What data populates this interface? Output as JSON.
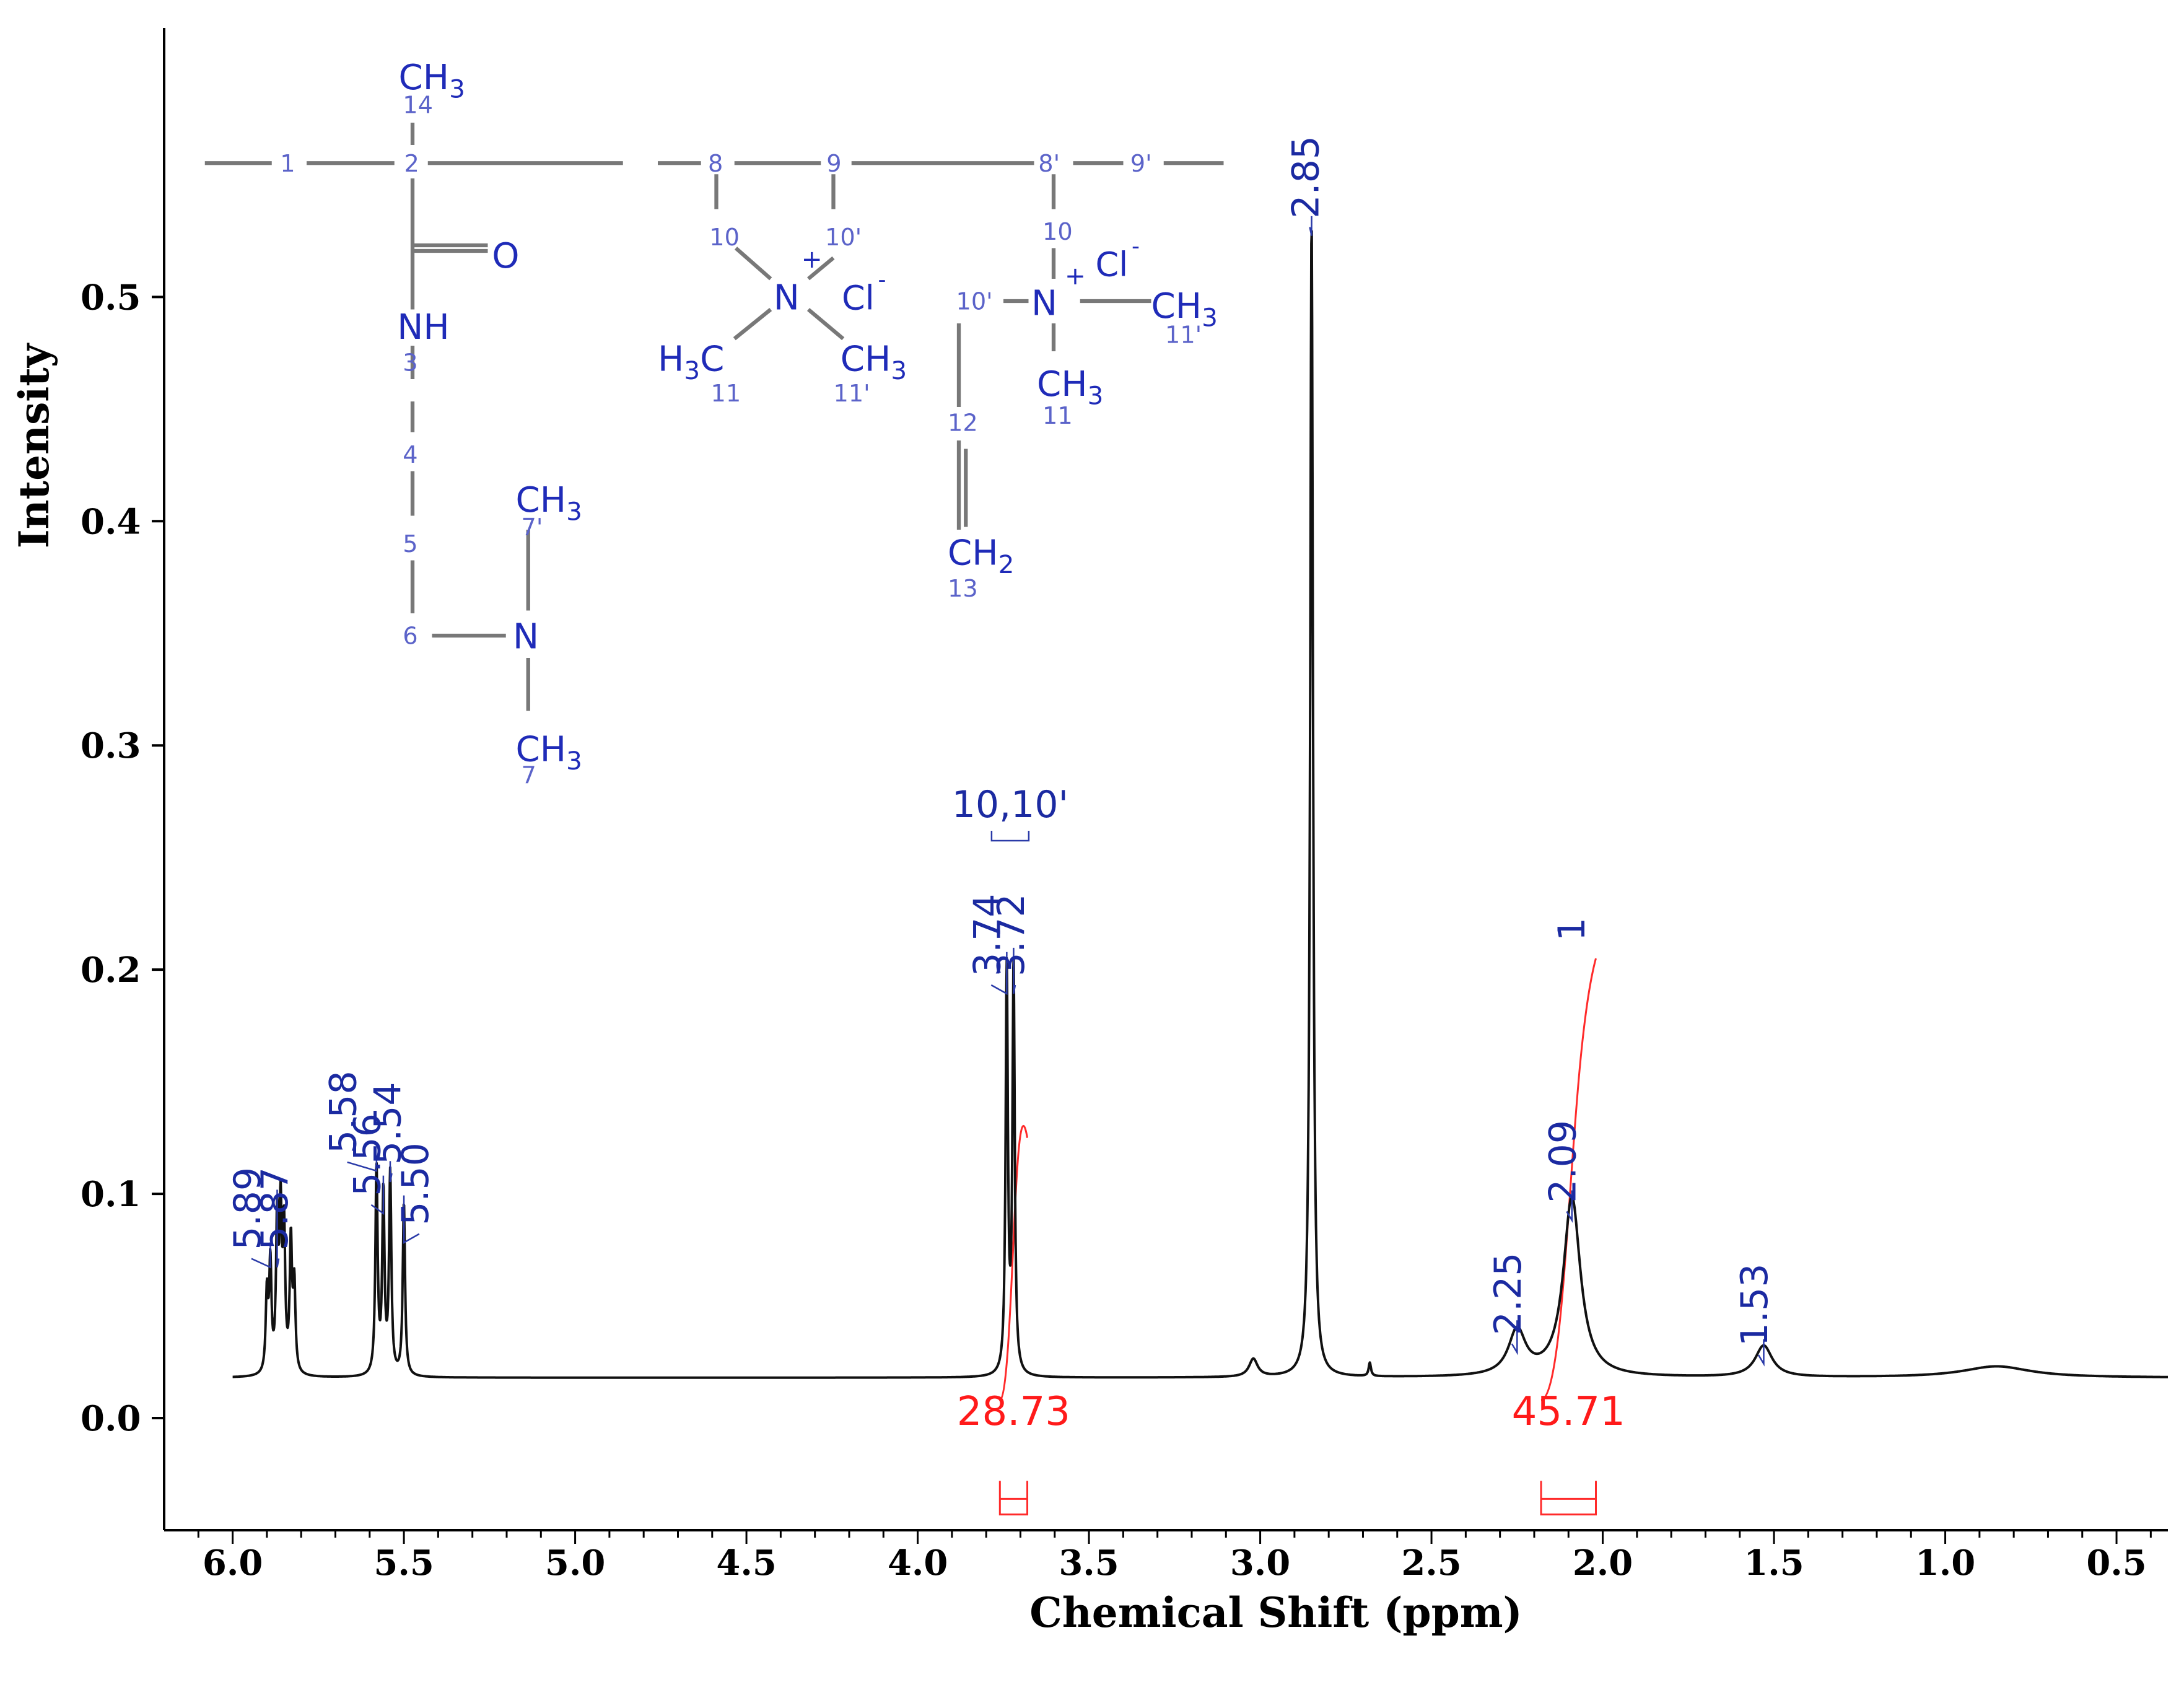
{
  "chart_data": {
    "type": "line",
    "xlabel": "Chemical Shift (ppm)",
    "ylabel": "Intensity",
    "xlim": [
      6.2,
      0.35
    ],
    "ylim": [
      -0.05,
      0.62
    ],
    "x_reversed": true,
    "x_ticks": [
      "6.0",
      "5.5",
      "5.0",
      "4.5",
      "4.0",
      "3.5",
      "3.0",
      "2.5",
      "2.0",
      "1.5",
      "1.0",
      "0.5"
    ],
    "y_ticks": [
      "0.0",
      "0.1",
      "0.2",
      "0.3",
      "0.4",
      "0.5"
    ],
    "baseline": 0.018,
    "series": [
      {
        "peaks": [
          {
            "x": 5.9,
            "height": 0.035,
            "width": 0.004
          },
          {
            "x": 5.89,
            "height": 0.048,
            "width": 0.004
          },
          {
            "x": 5.87,
            "height": 0.066,
            "width": 0.004
          },
          {
            "x": 5.86,
            "height": 0.068,
            "width": 0.004
          },
          {
            "x": 5.85,
            "height": 0.062,
            "width": 0.004
          },
          {
            "x": 5.83,
            "height": 0.058,
            "width": 0.004
          },
          {
            "x": 5.82,
            "height": 0.038,
            "width": 0.004
          },
          {
            "x": 5.58,
            "height": 0.092,
            "width": 0.004
          },
          {
            "x": 5.56,
            "height": 0.08,
            "width": 0.004
          },
          {
            "x": 5.54,
            "height": 0.089,
            "width": 0.004
          },
          {
            "x": 5.5,
            "height": 0.077,
            "width": 0.004
          },
          {
            "x": 3.74,
            "height": 0.18,
            "width": 0.004
          },
          {
            "x": 3.72,
            "height": 0.182,
            "width": 0.004
          },
          {
            "x": 3.02,
            "height": 0.008,
            "width": 0.015
          },
          {
            "x": 2.85,
            "height": 0.515,
            "width": 0.005
          },
          {
            "x": 2.68,
            "height": 0.006,
            "width": 0.004
          },
          {
            "x": 2.25,
            "height": 0.02,
            "width": 0.03
          },
          {
            "x": 2.09,
            "height": 0.08,
            "width": 0.03
          },
          {
            "x": 1.53,
            "height": 0.014,
            "width": 0.03
          },
          {
            "x": 0.85,
            "height": 0.005,
            "width": 0.12
          }
        ]
      }
    ],
    "peak_labels": [
      {
        "x": 5.89,
        "label": "5.89"
      },
      {
        "x": 5.87,
        "label": "5.87"
      },
      {
        "x": 5.58,
        "label": "5.58"
      },
      {
        "x": 5.56,
        "label": "5.56"
      },
      {
        "x": 5.54,
        "label": "5.54"
      },
      {
        "x": 5.5,
        "label": "5.50"
      },
      {
        "x": 3.74,
        "label": "3.74"
      },
      {
        "x": 3.72,
        "label": "3.72"
      },
      {
        "x": 2.85,
        "label": "2.85"
      },
      {
        "x": 2.25,
        "label": "2.25"
      },
      {
        "x": 2.09,
        "label": "2.09"
      },
      {
        "x": 1.53,
        "label": "1.53"
      }
    ],
    "integrals": [
      {
        "from": 3.76,
        "to": 3.68,
        "value": "28.73"
      },
      {
        "from": 2.18,
        "to": 2.02,
        "value": "45.71"
      }
    ],
    "assignments": [
      {
        "x": 3.73,
        "label": "10,10'"
      },
      {
        "x": 2.09,
        "label": "1"
      }
    ]
  },
  "structure": {
    "labels": {
      "ch3": "CH",
      "sub3": "3",
      "sub2": "2",
      "o": "O",
      "nh": "NH",
      "n": "N",
      "cl": "Cl",
      "minus": "-",
      "plus": "+",
      "h3c_h": "H",
      "h3c_c": "C",
      "n1": "1",
      "n2": "2",
      "n3": "3",
      "n4": "4",
      "n5": "5",
      "n6": "6",
      "n7": "7",
      "n7p": "7'",
      "n8": "8",
      "n9": "9",
      "n8p": "8'",
      "n9p": "9'",
      "n10": "10",
      "n10p": "10'",
      "n11": "11",
      "n11p": "11'",
      "n12": "12",
      "n13": "13",
      "n14": "14"
    }
  }
}
